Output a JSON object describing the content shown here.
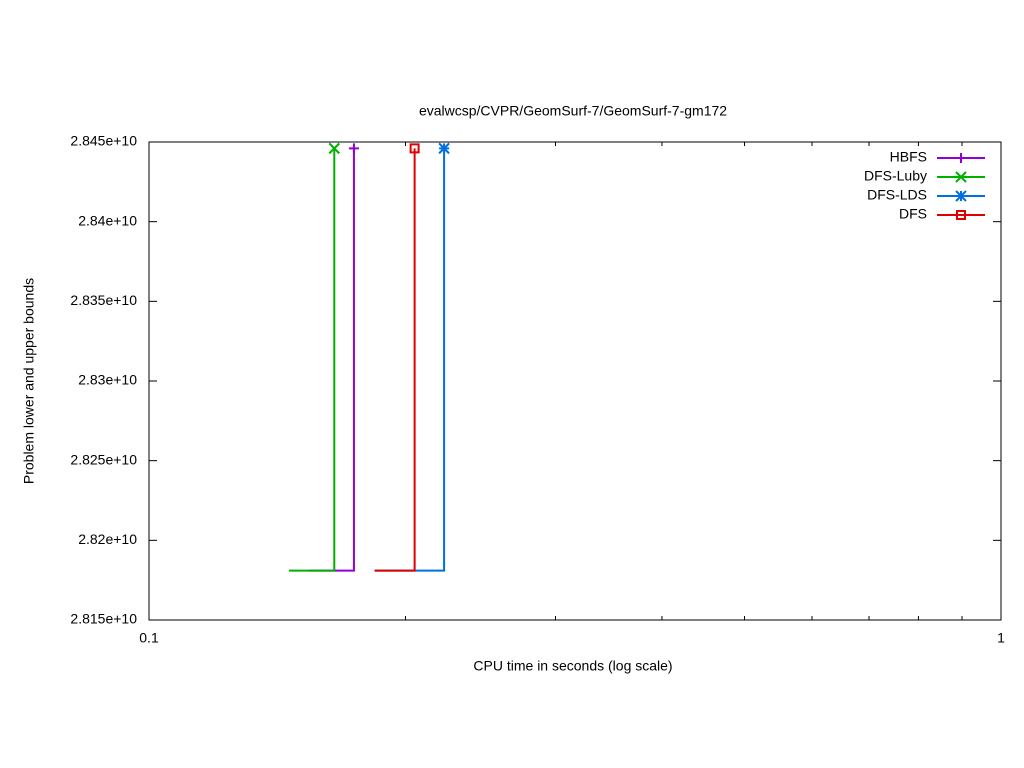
{
  "chart_data": {
    "type": "line",
    "title": "evalwcsp/CVPR/GeomSurf-7/GeomSurf-7-gm172",
    "xlabel": "CPU time in seconds (log scale)",
    "ylabel": "Problem lower and upper bounds",
    "xscale": "log",
    "xlim": [
      0.1,
      1
    ],
    "xticks": [
      0.1,
      1
    ],
    "xminorticks": [
      0.2,
      0.3,
      0.4,
      0.5,
      0.6,
      0.7,
      0.8,
      0.9
    ],
    "ylim": [
      28150000000,
      28450000000
    ],
    "yticks": [
      {
        "value": 28150000000,
        "label": "2.815e+10"
      },
      {
        "value": 28200000000,
        "label": "2.82e+10"
      },
      {
        "value": 28250000000,
        "label": "2.825e+10"
      },
      {
        "value": 28300000000,
        "label": "2.83e+10"
      },
      {
        "value": 28350000000,
        "label": "2.835e+10"
      },
      {
        "value": 28400000000,
        "label": "2.84e+10"
      },
      {
        "value": 28450000000,
        "label": "2.845e+10"
      }
    ],
    "legend": "upper right",
    "series": [
      {
        "name": "HBFS",
        "color": "#9400d3",
        "marker": "plus",
        "x": [
          0.154,
          0.174,
          0.174
        ],
        "values": [
          28181000000,
          28181000000,
          28446000000
        ]
      },
      {
        "name": "DFS-Luby",
        "color": "#00b000",
        "marker": "cross",
        "x": [
          0.146,
          0.165,
          0.165
        ],
        "values": [
          28181000000,
          28181000000,
          28446000000
        ]
      },
      {
        "name": "DFS-LDS",
        "color": "#0070e0",
        "marker": "star",
        "x": [
          0.184,
          0.222,
          0.222
        ],
        "values": [
          28181000000,
          28181000000,
          28446000000
        ]
      },
      {
        "name": "DFS",
        "color": "#e00000",
        "marker": "square",
        "x": [
          0.184,
          0.205,
          0.205
        ],
        "values": [
          28181000000,
          28181000000,
          28446000000
        ]
      }
    ]
  }
}
